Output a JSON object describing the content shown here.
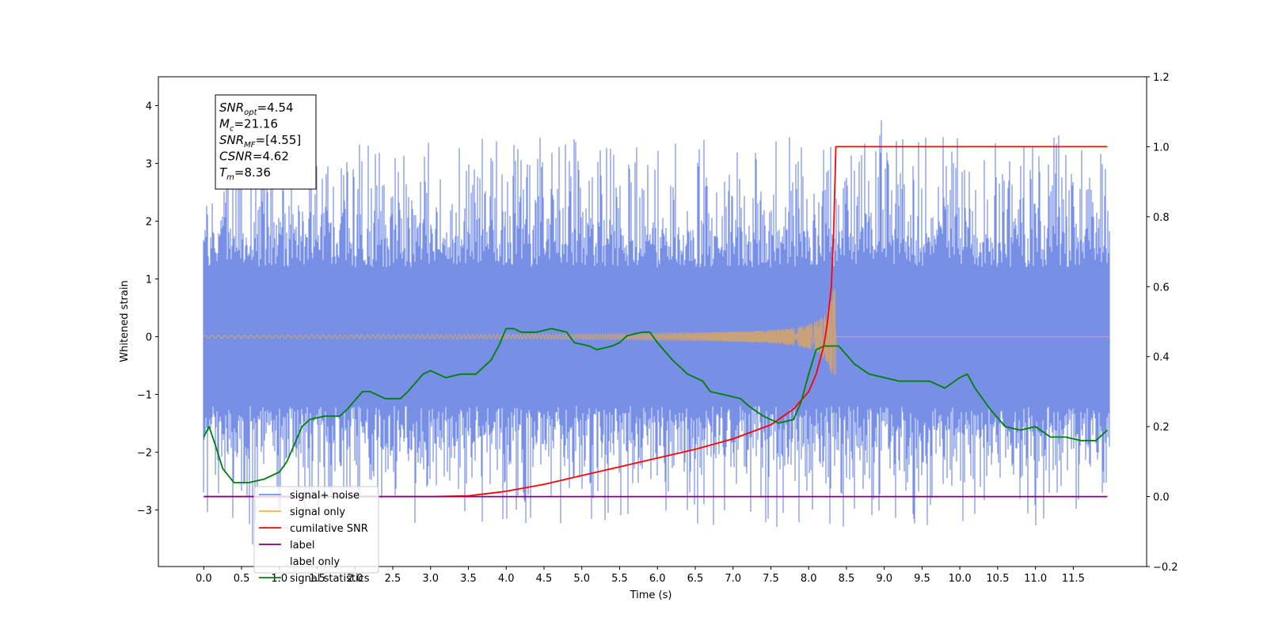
{
  "chart_data": {
    "type": "line",
    "xlabel": "Time (s)",
    "ylabel_left": "Whitened strain",
    "ylabel_right": "",
    "xlim": [
      -0.6,
      12.47
    ],
    "ylim_left": [
      -3.98,
      4.5
    ],
    "ylim_right": [
      -0.2,
      1.2
    ],
    "x_ticks": [
      "0.0",
      "0.5",
      "1.0",
      "1.5",
      "2.0",
      "2.5",
      "3.0",
      "3.5",
      "4.0",
      "4.5",
      "5.0",
      "5.5",
      "6.0",
      "6.5",
      "7.0",
      "7.5",
      "8.0",
      "8.5",
      "9.0",
      "9.5",
      "10.0",
      "10.5",
      "11.0",
      "11.5"
    ],
    "y_ticks_left": [
      "−3",
      "−2",
      "−1",
      "0",
      "1",
      "2",
      "3",
      "4"
    ],
    "y_ticks_right": [
      "−0.2",
      "0.0",
      "0.2",
      "0.4",
      "0.6",
      "0.8",
      "1.0",
      "1.2"
    ],
    "legend_position": "lower-left",
    "grid": false,
    "annotation": [
      {
        "base": "SNR",
        "sub": "opt",
        "text": "=4.54"
      },
      {
        "base": "M",
        "sub": "c",
        "text": "=21.16"
      },
      {
        "base": "SNR",
        "sub": "MF",
        "text": "=[4.55]"
      },
      {
        "base": "CSNR",
        "sub": "",
        "text": "=4.62"
      },
      {
        "base": "T",
        "sub": "m",
        "text": "=8.36"
      }
    ],
    "series": [
      {
        "name": "signal+ noise",
        "color": "#7790e6",
        "axis": "left",
        "style": "noise band, range approx [-3.6, 4.1], std approx 1, spanning 0.0 to 12.0 s"
      },
      {
        "name": "signal only",
        "color": "#f5b341",
        "axis": "left",
        "style": "chirp near 0, amplitude growing to approx 0.8 at 8.36 s, zero afterwards"
      },
      {
        "name": "cumilative SNR",
        "color": "#ff0000",
        "axis": "right",
        "x": [
          0.0,
          3.0,
          3.5,
          4.0,
          4.5,
          5.0,
          5.5,
          6.0,
          6.5,
          7.0,
          7.5,
          7.8,
          8.0,
          8.1,
          8.2,
          8.25,
          8.3,
          8.33,
          8.36,
          8.5,
          9.0,
          10.0,
          11.0,
          11.95
        ],
        "values": [
          0.0,
          0.0,
          0.002,
          0.015,
          0.035,
          0.06,
          0.085,
          0.11,
          0.135,
          0.165,
          0.205,
          0.25,
          0.3,
          0.35,
          0.43,
          0.5,
          0.6,
          0.75,
          1.0,
          1.0,
          1.0,
          1.0,
          1.0,
          1.0
        ]
      },
      {
        "name": "label",
        "color": "#800080",
        "axis": "right",
        "x": [
          0.0,
          11.95
        ],
        "values": [
          0.0,
          0.0
        ]
      },
      {
        "name": "label only",
        "color": "#ffffff",
        "axis": "right",
        "x": [],
        "values": []
      },
      {
        "name": "signal statistics",
        "color": "#008000",
        "axis": "right",
        "x": [
          0.0,
          0.07,
          0.15,
          0.25,
          0.4,
          0.6,
          0.8,
          1.0,
          1.1,
          1.2,
          1.3,
          1.4,
          1.6,
          1.8,
          1.9,
          2.1,
          2.2,
          2.4,
          2.6,
          2.7,
          2.9,
          3.0,
          3.2,
          3.4,
          3.6,
          3.8,
          3.9,
          4.0,
          4.1,
          4.2,
          4.4,
          4.6,
          4.8,
          4.9,
          5.1,
          5.2,
          5.4,
          5.5,
          5.6,
          5.8,
          5.9,
          6.0,
          6.2,
          6.4,
          6.6,
          6.7,
          6.9,
          7.1,
          7.2,
          7.4,
          7.6,
          7.8,
          7.9,
          8.0,
          8.1,
          8.2,
          8.4,
          8.6,
          8.8,
          9.0,
          9.2,
          9.4,
          9.6,
          9.8,
          10.0,
          10.1,
          10.2,
          10.4,
          10.6,
          10.8,
          11.0,
          11.2,
          11.4,
          11.6,
          11.8,
          11.95
        ],
        "values": [
          0.17,
          0.2,
          0.15,
          0.08,
          0.04,
          0.04,
          0.05,
          0.07,
          0.1,
          0.15,
          0.2,
          0.22,
          0.23,
          0.23,
          0.25,
          0.3,
          0.3,
          0.28,
          0.28,
          0.3,
          0.35,
          0.36,
          0.34,
          0.35,
          0.35,
          0.39,
          0.43,
          0.48,
          0.48,
          0.47,
          0.47,
          0.48,
          0.47,
          0.44,
          0.43,
          0.42,
          0.43,
          0.44,
          0.46,
          0.47,
          0.47,
          0.44,
          0.39,
          0.35,
          0.33,
          0.3,
          0.29,
          0.28,
          0.26,
          0.23,
          0.21,
          0.22,
          0.27,
          0.35,
          0.42,
          0.43,
          0.43,
          0.38,
          0.35,
          0.34,
          0.33,
          0.33,
          0.33,
          0.31,
          0.34,
          0.35,
          0.31,
          0.25,
          0.2,
          0.19,
          0.2,
          0.17,
          0.17,
          0.16,
          0.16,
          0.19
        ]
      }
    ]
  }
}
